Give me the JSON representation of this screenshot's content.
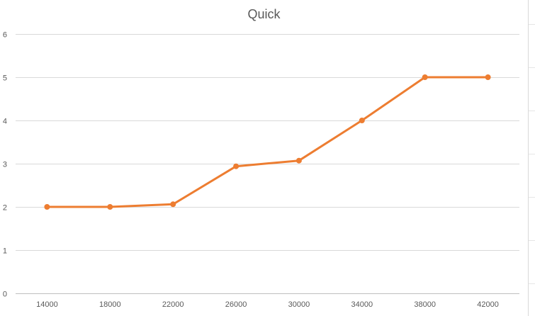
{
  "chart_data": {
    "type": "line",
    "title": "Quick",
    "xlabel": "",
    "ylabel": "",
    "categories": [
      "14000",
      "18000",
      "22000",
      "26000",
      "30000",
      "34000",
      "38000",
      "42000"
    ],
    "series": [
      {
        "values": [
          2,
          2,
          2.06,
          2.94,
          3.07,
          4,
          5,
          5
        ]
      }
    ],
    "ylim": [
      0,
      6
    ],
    "yticks": [
      "0",
      "1",
      "2",
      "3",
      "4",
      "5",
      "6"
    ],
    "grid": true,
    "legend": "none",
    "colors": {
      "line": "#ED7D31",
      "grid": "#D9D9D9",
      "axis": "#BFBFBF",
      "tick_label": "#595959",
      "title": "#595959"
    }
  }
}
